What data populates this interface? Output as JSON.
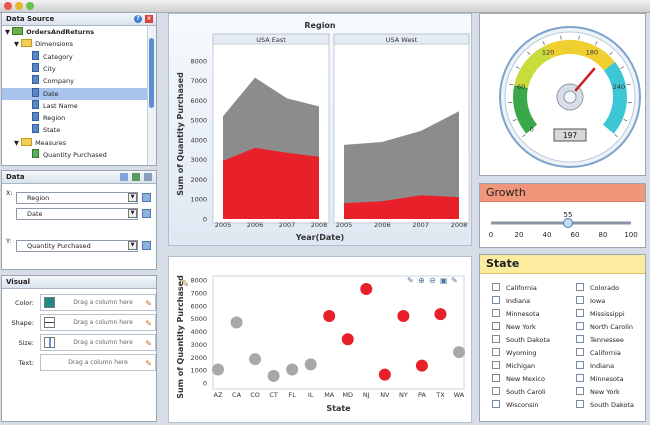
{
  "window": {
    "buttons": [
      "close",
      "minimize",
      "maximize"
    ]
  },
  "data_source": {
    "title": "Data Source",
    "root": "OrdersAndReturns",
    "dimensions_label": "Dimensions",
    "dimensions": [
      "Category",
      "City",
      "Company",
      "Date",
      "Last Name",
      "Region",
      "State"
    ],
    "selected": "Date",
    "measures_label": "Measures",
    "measures": [
      "Quantity Purchased"
    ]
  },
  "data_panel": {
    "title": "Data",
    "x_label": "X:",
    "x_fields": [
      "Region",
      "Date"
    ],
    "y_label": "Y:",
    "y_fields": [
      "Quantity Purchased"
    ]
  },
  "visual_panel": {
    "title": "Visual",
    "rows": [
      {
        "label": "Color:",
        "placeholder": "Drag a column here"
      },
      {
        "label": "Shape:",
        "placeholder": "Drag a column here"
      },
      {
        "label": "Size:",
        "placeholder": "Drag a column here"
      },
      {
        "label": "Text:",
        "placeholder": "Drag a column here"
      }
    ],
    "color_swatch": "#1f8a84"
  },
  "region_chart": {
    "title": "Region",
    "facets": [
      "USA East",
      "USA West"
    ],
    "ylabel": "Sum of Quantity Purchased",
    "xlabel": "Year(Date)",
    "years": [
      "2005",
      "2006",
      "2007",
      "2008"
    ],
    "yticks": [
      "0",
      "1000",
      "2000",
      "3000",
      "4000",
      "5000",
      "6000",
      "7000",
      "8000"
    ]
  },
  "state_chart": {
    "ylabel": "Sum of Quantity Purchased",
    "xlabel": "State",
    "yticks": [
      "0",
      "1000",
      "2000",
      "3000",
      "4000",
      "5000",
      "6000",
      "7000",
      "8000"
    ]
  },
  "chart_data": [
    {
      "type": "area",
      "title": "Region",
      "xlabel": "Year(Date)",
      "ylabel": "Sum of Quantity Purchased",
      "ylim": [
        0,
        8500
      ],
      "x": [
        "2005",
        "2006",
        "2007",
        "2008"
      ],
      "facets": [
        {
          "name": "USA East",
          "series": [
            {
              "values": [
                5200,
                7150,
                6100,
                5700
              ],
              "color": "#8c8c8c"
            },
            {
              "values": [
                2950,
                3600,
                3350,
                3150
              ],
              "color": "#e8202a"
            }
          ]
        },
        {
          "name": "USA West",
          "series": [
            {
              "values": [
                3750,
                3900,
                4450,
                5450
              ],
              "color": "#8c8c8c"
            },
            {
              "values": [
                800,
                900,
                1200,
                1100
              ],
              "color": "#e8202a"
            }
          ]
        }
      ]
    },
    {
      "type": "scatter",
      "xlabel": "State",
      "ylabel": "Sum of Quantity Purchased",
      "ylim": [
        0,
        8000
      ],
      "categories": [
        "AZ",
        "CA",
        "CO",
        "CT",
        "FL",
        "IL",
        "MA",
        "MD",
        "NJ",
        "NV",
        "NY",
        "PA",
        "TX",
        "WA"
      ],
      "values": [
        1050,
        4700,
        1850,
        550,
        1050,
        1450,
        5200,
        3400,
        7300,
        650,
        5200,
        1350,
        5350,
        2400
      ],
      "highlight": [
        false,
        false,
        false,
        false,
        false,
        false,
        true,
        true,
        true,
        true,
        true,
        true,
        true,
        false
      ],
      "colors": {
        "normal": "#a8a8a8",
        "highlight": "#e8202a"
      }
    }
  ],
  "gauge": {
    "value": "197",
    "ticks": [
      "0",
      "60",
      "120",
      "180",
      "240"
    ],
    "max": 300,
    "needle_value": 197
  },
  "growth": {
    "title": "Growth",
    "value": "55",
    "value_num": 55,
    "min": 0,
    "max": 100,
    "ticks": [
      "0",
      "20",
      "40",
      "60",
      "80",
      "100"
    ]
  },
  "state_panel": {
    "title": "State",
    "col1": [
      "California",
      "Indiana",
      "Minnesota",
      "New York",
      "South Dakota",
      "Wyoming",
      "Michigan",
      "New Mexico",
      "South Caroli",
      "Wisconsin"
    ],
    "col2": [
      "Colorado",
      "Iowa",
      "Mississippi",
      "North Carolin",
      "Tennessee",
      "California",
      "Indiana",
      "Minnesota",
      "New York",
      "South Dakota"
    ]
  }
}
